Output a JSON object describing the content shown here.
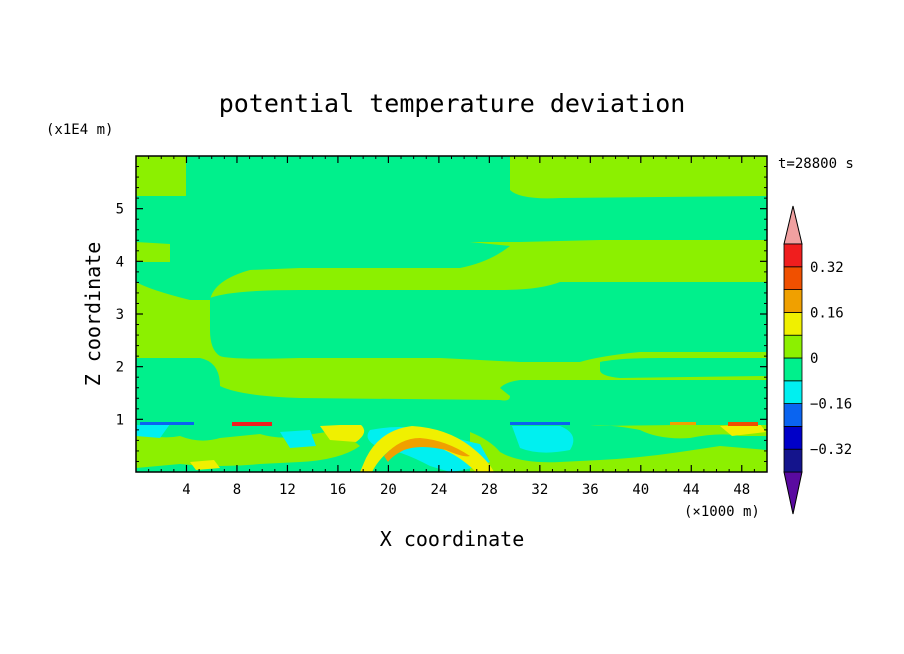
{
  "chart_data": {
    "type": "heatmap",
    "title": "potential temperature deviation",
    "xlabel": "X coordinate",
    "ylabel": "Z coordinate",
    "x_unit": "(×1000 m)",
    "y_unit": "(x1E4 m)",
    "time_label": "t=28800 s",
    "xlim": [
      0,
      50
    ],
    "ylim": [
      0,
      6
    ],
    "x_ticks": [
      4,
      8,
      12,
      16,
      20,
      24,
      28,
      32,
      36,
      40,
      44,
      48
    ],
    "y_ticks": [
      1,
      2,
      3,
      4,
      5
    ],
    "colorbar": {
      "levels": [
        -0.4,
        -0.32,
        -0.24,
        -0.16,
        -0.08,
        0,
        0.08,
        0.16,
        0.24,
        0.32,
        0.4
      ],
      "labels": [
        "0.32",
        "0.16",
        "0",
        "−0.16",
        "−0.32"
      ],
      "label_values": [
        0.32,
        0.16,
        0,
        -0.16,
        -0.32
      ],
      "colors": [
        "#5a0aa0",
        "#14148c",
        "#0000c8",
        "#0a64f0",
        "#00f0f0",
        "#00f08c",
        "#8cf000",
        "#f0f000",
        "#f0a000",
        "#f05000",
        "#f01e1e",
        "#f0a0a0"
      ]
    },
    "field_description": {
      "upper_background_level": 0.04,
      "large_band_level": -0.04,
      "surface_features": "mixed cyan, yellow and red patches below z=1; warm arc near x 18-28"
    }
  }
}
